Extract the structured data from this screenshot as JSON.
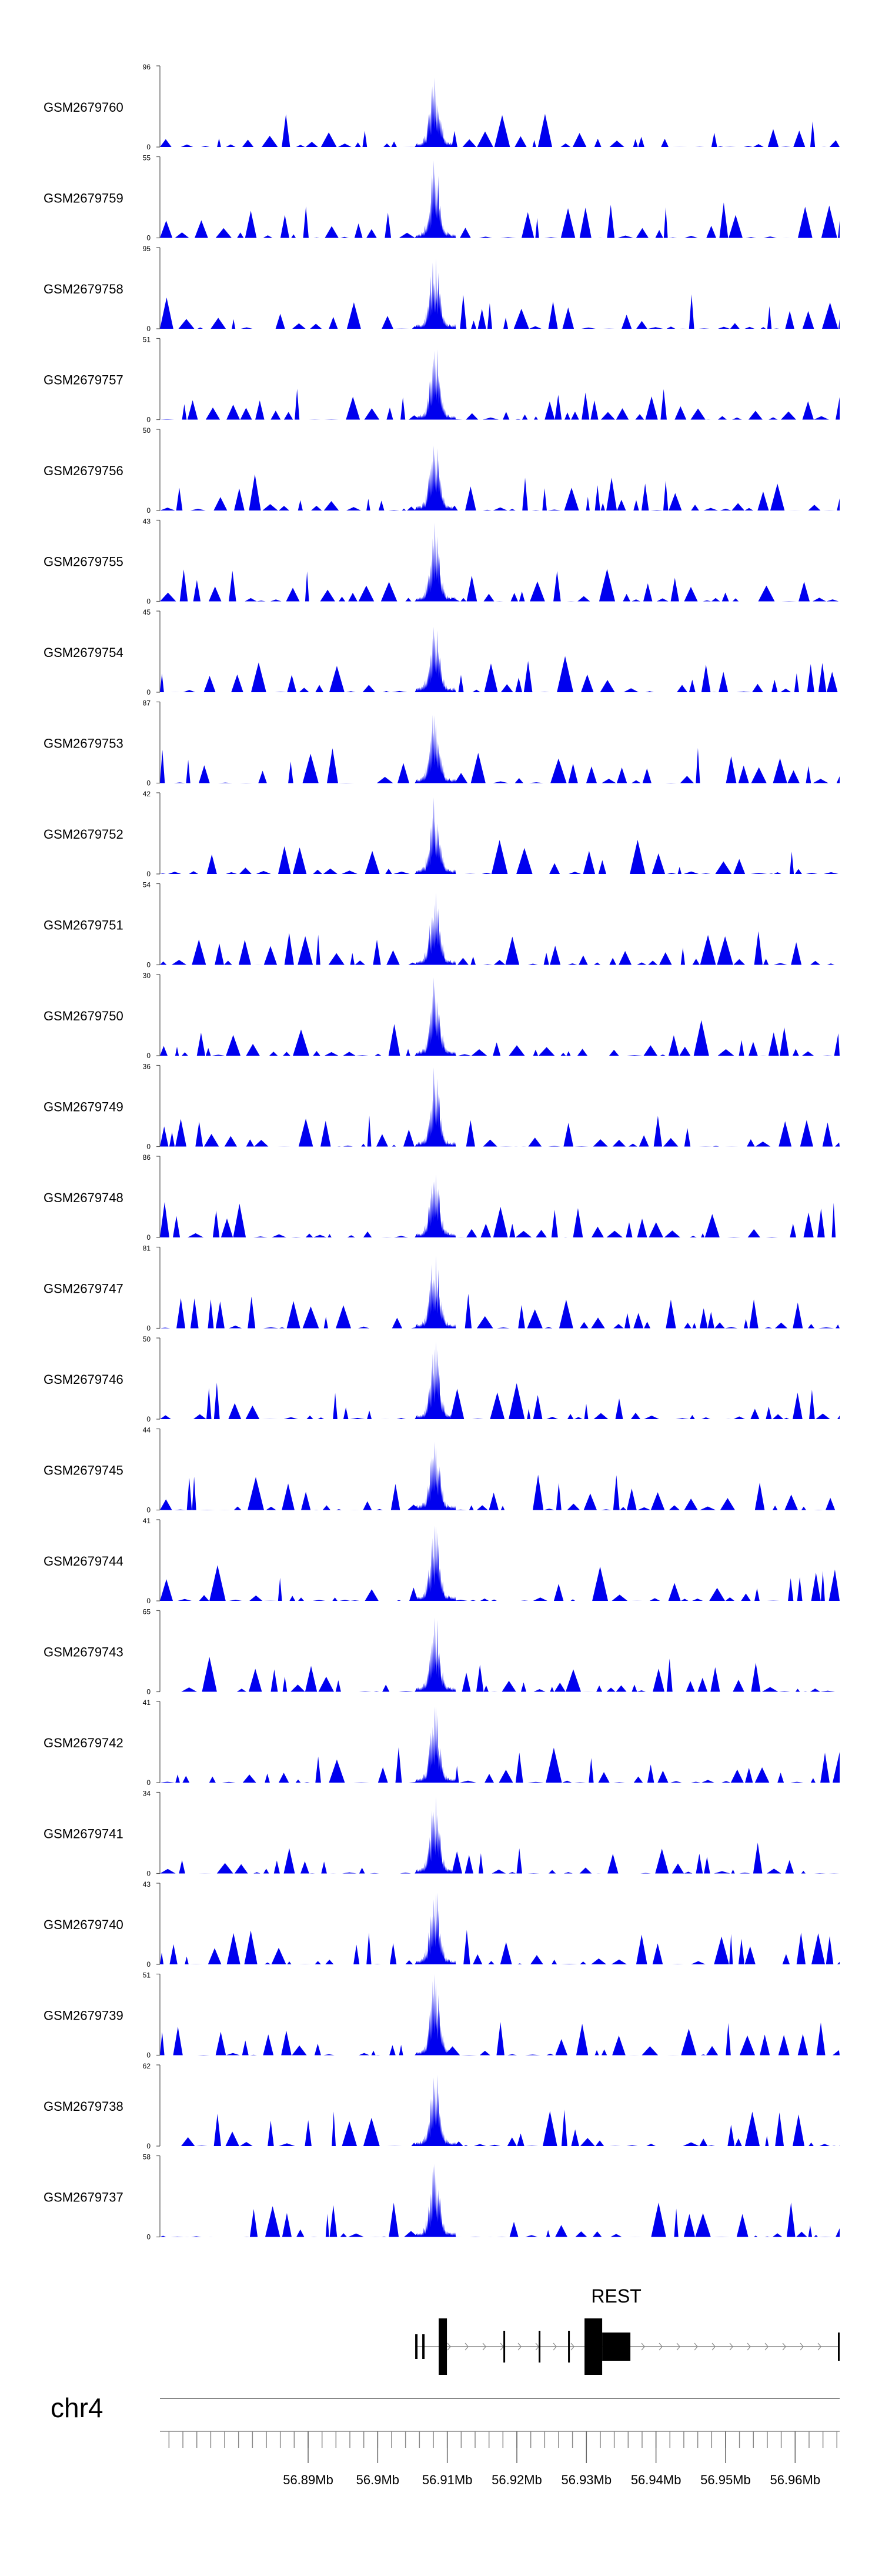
{
  "chart_data": {
    "type": "area",
    "title": "",
    "chromosome": "chr4",
    "x_range_mb": [
      56.8687,
      56.9664
    ],
    "x_ticks": [
      {
        "value": 56.89,
        "label": "56.89Mb"
      },
      {
        "value": 56.9,
        "label": "56.9Mb"
      },
      {
        "value": 56.91,
        "label": "56.91Mb"
      },
      {
        "value": 56.92,
        "label": "56.92Mb"
      },
      {
        "value": 56.93,
        "label": "56.93Mb"
      },
      {
        "value": 56.94,
        "label": "56.94Mb"
      },
      {
        "value": 56.95,
        "label": "56.95Mb"
      },
      {
        "value": 56.96,
        "label": "56.96Mb"
      }
    ],
    "minor_tick_step_mb": 0.002,
    "peak_center_mb": 56.9082,
    "series_color": "#0000ee",
    "tracks": [
      {
        "name": "GSM2679760",
        "ymin": 0,
        "ymax": 96,
        "peak": 96
      },
      {
        "name": "GSM2679759",
        "ymin": 0,
        "ymax": 55,
        "peak": 55
      },
      {
        "name": "GSM2679758",
        "ymin": 0,
        "ymax": 95,
        "peak": 95
      },
      {
        "name": "GSM2679757",
        "ymin": 0,
        "ymax": 51,
        "peak": 51
      },
      {
        "name": "GSM2679756",
        "ymin": 0,
        "ymax": 50,
        "peak": 50
      },
      {
        "name": "GSM2679755",
        "ymin": 0,
        "ymax": 43,
        "peak": 43
      },
      {
        "name": "GSM2679754",
        "ymin": 0,
        "ymax": 45,
        "peak": 45
      },
      {
        "name": "GSM2679753",
        "ymin": 0,
        "ymax": 87,
        "peak": 87
      },
      {
        "name": "GSM2679752",
        "ymin": 0,
        "ymax": 42,
        "peak": 42
      },
      {
        "name": "GSM2679751",
        "ymin": 0,
        "ymax": 54,
        "peak": 54
      },
      {
        "name": "GSM2679750",
        "ymin": 0,
        "ymax": 30,
        "peak": 30
      },
      {
        "name": "GSM2679749",
        "ymin": 0,
        "ymax": 36,
        "peak": 36
      },
      {
        "name": "GSM2679748",
        "ymin": 0,
        "ymax": 86,
        "peak": 86
      },
      {
        "name": "GSM2679747",
        "ymin": 0,
        "ymax": 81,
        "peak": 81
      },
      {
        "name": "GSM2679746",
        "ymin": 0,
        "ymax": 50,
        "peak": 50
      },
      {
        "name": "GSM2679745",
        "ymin": 0,
        "ymax": 44,
        "peak": 44
      },
      {
        "name": "GSM2679744",
        "ymin": 0,
        "ymax": 41,
        "peak": 41
      },
      {
        "name": "GSM2679743",
        "ymin": 0,
        "ymax": 65,
        "peak": 65
      },
      {
        "name": "GSM2679742",
        "ymin": 0,
        "ymax": 41,
        "peak": 41
      },
      {
        "name": "GSM2679741",
        "ymin": 0,
        "ymax": 34,
        "peak": 34
      },
      {
        "name": "GSM2679740",
        "ymin": 0,
        "ymax": 43,
        "peak": 43
      },
      {
        "name": "GSM2679739",
        "ymin": 0,
        "ymax": 51,
        "peak": 51
      },
      {
        "name": "GSM2679738",
        "ymin": 0,
        "ymax": 62,
        "peak": 62
      },
      {
        "name": "GSM2679737",
        "ymin": 0,
        "ymax": 58,
        "peak": 58
      }
    ],
    "gene": {
      "name": "REST",
      "strand": "+",
      "start_mb": 56.9075,
      "end_mb": 56.9664
    }
  }
}
